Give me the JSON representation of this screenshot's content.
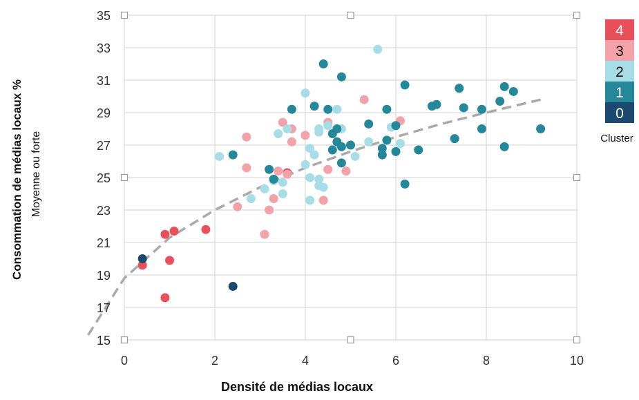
{
  "chart_data": {
    "type": "scatter",
    "xlabel": "Densité de médias locaux",
    "ylabel": "Consommation de médias locaux %",
    "ylabel2": "Moyenne ou forte",
    "xlim": [
      0,
      10
    ],
    "ylim": [
      15,
      35
    ],
    "x_ticks": [
      "0",
      "2",
      "4",
      "6",
      "8",
      "10"
    ],
    "y_ticks": [
      "15",
      "17",
      "19",
      "21",
      "23",
      "25",
      "27",
      "29",
      "31",
      "33",
      "35"
    ],
    "grid": true,
    "legend": {
      "title": "Cluster",
      "placement": "right",
      "entries": [
        {
          "label": "4",
          "color": "#e8505b"
        },
        {
          "label": "3",
          "color": "#f2a2a8"
        },
        {
          "label": "2",
          "color": "#a6dde6"
        },
        {
          "label": "1",
          "color": "#24879a"
        },
        {
          "label": "0",
          "color": "#1b4a6e"
        }
      ]
    },
    "trendline": {
      "style": "dashed",
      "color": "#aaaaaa",
      "points": [
        [
          -0.8,
          15.3
        ],
        [
          0,
          18.8
        ],
        [
          1,
          21.3
        ],
        [
          2,
          23.0
        ],
        [
          3,
          24.4
        ],
        [
          4,
          25.6
        ],
        [
          5,
          26.6
        ],
        [
          6,
          27.5
        ],
        [
          7,
          28.3
        ],
        [
          8,
          29.0
        ],
        [
          9.2,
          29.8
        ]
      ]
    },
    "series": [
      {
        "cluster": "4",
        "color": "#e8505b",
        "points": [
          [
            0.4,
            19.6
          ],
          [
            0.9,
            17.6
          ],
          [
            0.9,
            21.5
          ],
          [
            1.0,
            19.9
          ],
          [
            1.1,
            21.7
          ],
          [
            1.8,
            21.8
          ],
          [
            3.6,
            25.3
          ]
        ]
      },
      {
        "cluster": "3",
        "color": "#f2a2a8",
        "points": [
          [
            2.5,
            23.2
          ],
          [
            2.7,
            27.5
          ],
          [
            2.7,
            25.6
          ],
          [
            3.1,
            21.5
          ],
          [
            3.2,
            23.0
          ],
          [
            3.3,
            23.7
          ],
          [
            3.4,
            25.4
          ],
          [
            3.5,
            28.4
          ],
          [
            3.6,
            25.2
          ],
          [
            3.7,
            28.0
          ],
          [
            3.7,
            27.2
          ],
          [
            4.0,
            27.6
          ],
          [
            4.4,
            23.6
          ],
          [
            4.5,
            25.5
          ],
          [
            4.5,
            28.4
          ],
          [
            4.9,
            25.4
          ],
          [
            5.3,
            29.8
          ],
          [
            6.1,
            28.5
          ]
        ]
      },
      {
        "cluster": "2",
        "color": "#a6dde6",
        "points": [
          [
            2.1,
            26.3
          ],
          [
            2.8,
            23.7
          ],
          [
            3.1,
            24.3
          ],
          [
            3.3,
            24.8
          ],
          [
            3.4,
            27.7
          ],
          [
            3.5,
            24.7
          ],
          [
            3.5,
            24.0
          ],
          [
            3.6,
            28.0
          ],
          [
            4.0,
            30.2
          ],
          [
            4.0,
            25.8
          ],
          [
            4.1,
            26.8
          ],
          [
            4.1,
            23.6
          ],
          [
            4.1,
            25.0
          ],
          [
            4.2,
            26.4
          ],
          [
            4.3,
            28.0
          ],
          [
            4.3,
            27.8
          ],
          [
            4.3,
            24.9
          ],
          [
            4.3,
            24.5
          ],
          [
            4.4,
            24.4
          ],
          [
            4.5,
            28.2
          ],
          [
            4.7,
            29.2
          ],
          [
            4.8,
            28.0
          ],
          [
            5.1,
            26.3
          ],
          [
            5.4,
            27.2
          ],
          [
            5.6,
            32.9
          ],
          [
            5.9,
            28.1
          ],
          [
            6.1,
            27.1
          ]
        ]
      },
      {
        "cluster": "1",
        "color": "#24879a",
        "points": [
          [
            2.4,
            26.4
          ],
          [
            3.2,
            25.5
          ],
          [
            3.3,
            24.9
          ],
          [
            3.7,
            29.2
          ],
          [
            4.2,
            29.4
          ],
          [
            4.4,
            32.0
          ],
          [
            4.5,
            29.2
          ],
          [
            4.6,
            26.7
          ],
          [
            4.6,
            27.7
          ],
          [
            4.7,
            27.2
          ],
          [
            4.7,
            28.0
          ],
          [
            4.8,
            31.2
          ],
          [
            4.8,
            26.9
          ],
          [
            4.8,
            25.9
          ],
          [
            5.0,
            27.0
          ],
          [
            5.4,
            28.3
          ],
          [
            5.7,
            26.8
          ],
          [
            5.7,
            26.4
          ],
          [
            5.8,
            29.2
          ],
          [
            5.8,
            27.3
          ],
          [
            6.0,
            26.6
          ],
          [
            6.0,
            28.2
          ],
          [
            6.2,
            30.7
          ],
          [
            6.2,
            24.6
          ],
          [
            6.5,
            26.7
          ],
          [
            6.8,
            29.4
          ],
          [
            6.9,
            29.5
          ],
          [
            7.3,
            27.4
          ],
          [
            7.4,
            30.5
          ],
          [
            7.5,
            29.3
          ],
          [
            7.9,
            29.2
          ],
          [
            7.9,
            28.0
          ],
          [
            8.3,
            29.7
          ],
          [
            8.4,
            30.6
          ],
          [
            8.4,
            26.9
          ],
          [
            8.6,
            30.3
          ],
          [
            9.2,
            28.0
          ]
        ]
      },
      {
        "cluster": "0",
        "color": "#1b4a6e",
        "points": [
          [
            0.4,
            20.0
          ],
          [
            2.4,
            18.3
          ]
        ]
      }
    ]
  }
}
